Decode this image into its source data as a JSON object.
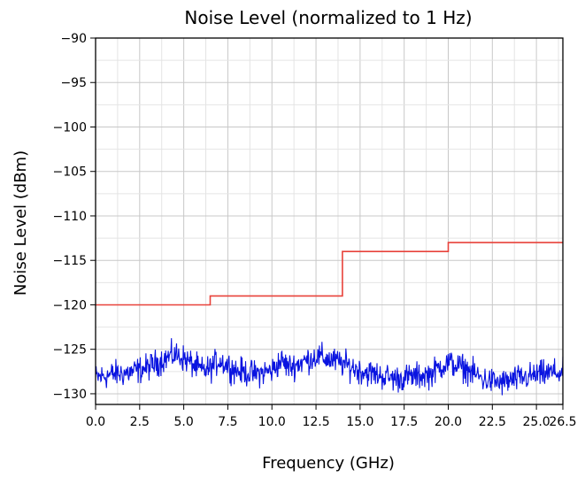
{
  "chart_data": {
    "type": "line",
    "title": "Noise Level (normalized to 1 Hz)",
    "xlabel": "Frequency (GHz)",
    "ylabel": "Noise Level (dBm)",
    "xlim": [
      0,
      26.5
    ],
    "ylim": [
      -131.2,
      -90
    ],
    "grid": true,
    "x_ticks": [
      "0.0",
      "2.5",
      "5.0",
      "7.5",
      "10.0",
      "12.5",
      "15.0",
      "17.5",
      "20.0",
      "22.5",
      "25.0",
      "26.5"
    ],
    "x_tick_values": [
      0,
      2.5,
      5,
      7.5,
      10,
      12.5,
      15,
      17.5,
      20,
      22.5,
      25,
      26.5
    ],
    "y_ticks": [
      "−90",
      "−95",
      "−100",
      "−105",
      "−110",
      "−115",
      "−120",
      "−125",
      "−130"
    ],
    "y_tick_values": [
      -90,
      -95,
      -100,
      -105,
      -110,
      -115,
      -120,
      -125,
      -130
    ],
    "series": [
      {
        "color": "#e8423a",
        "style": "step",
        "x": [
          0,
          6.5,
          6.5,
          14,
          14,
          20,
          20,
          26.5
        ],
        "y": [
          -120,
          -120,
          -119,
          -119,
          -114,
          -114,
          -113,
          -113
        ]
      },
      {
        "color": "#0a14e0",
        "style": "noisy",
        "x": [
          0,
          1,
          2,
          3,
          4,
          4.5,
          5,
          6,
          6.5,
          7,
          8,
          9,
          10,
          10.5,
          11,
          12,
          12.5,
          13,
          14,
          15,
          16,
          17,
          18,
          19,
          19.5,
          20,
          21,
          22,
          23,
          24,
          25,
          26,
          26.5
        ],
        "y": [
          -128.2,
          -127.8,
          -127.6,
          -127.0,
          -126.0,
          -125.6,
          -126.0,
          -127.4,
          -127.2,
          -126.2,
          -127.4,
          -127.8,
          -127.4,
          -126.3,
          -127.0,
          -126.2,
          -125.8,
          -126.0,
          -126.6,
          -127.4,
          -127.9,
          -128.3,
          -128.1,
          -127.8,
          -127.0,
          -126.5,
          -127.2,
          -128.4,
          -128.8,
          -128.3,
          -127.9,
          -127.6,
          -127.7
        ]
      }
    ]
  }
}
